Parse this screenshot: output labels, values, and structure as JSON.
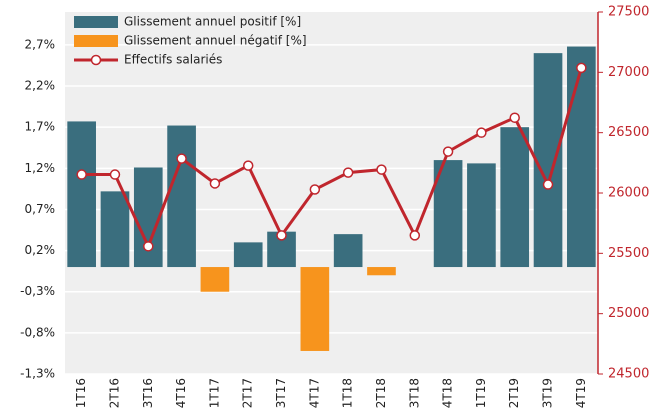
{
  "chart_data": {
    "type": "bar-line",
    "categories": [
      "1T16",
      "2T16",
      "3T16",
      "4T16",
      "1T17",
      "2T17",
      "3T17",
      "4T17",
      "1T18",
      "2T18",
      "3T18",
      "4T18",
      "1T19",
      "2T19",
      "3T19",
      "4T19"
    ],
    "series": [
      {
        "name": "Glissement annuel positif [%]",
        "color": "#3a6e7e",
        "type": "bar",
        "values": [
          1.77,
          0.92,
          1.21,
          1.72,
          null,
          0.3,
          0.43,
          null,
          0.4,
          null,
          null,
          1.3,
          1.26,
          1.7,
          2.6,
          2.68
        ]
      },
      {
        "name": "Glissement annuel négatif [%]",
        "color": "#f7941d",
        "type": "bar",
        "values": [
          null,
          null,
          null,
          null,
          -0.3,
          null,
          null,
          -1.02,
          null,
          -0.1,
          null,
          null,
          null,
          null,
          null,
          null
        ]
      },
      {
        "name": "Effectifs salariés",
        "color": "#c0262d",
        "type": "line",
        "axis": "y2",
        "values": [
          26153,
          26153,
          25558,
          26285,
          26079,
          26227,
          25649,
          26029,
          26169,
          26194,
          25649,
          26343,
          26500,
          26624,
          26070,
          27037
        ]
      }
    ],
    "ylim": [
      -1.3,
      3.1
    ],
    "yticks": [
      {
        "value": -1.3,
        "label": "-1,3%"
      },
      {
        "value": -0.8,
        "label": "-0,8%"
      },
      {
        "value": -0.3,
        "label": "-0,3%"
      },
      {
        "value": 0.2,
        "label": "0,2%"
      },
      {
        "value": 0.7,
        "label": "0,7%"
      },
      {
        "value": 1.2,
        "label": "1,2%"
      },
      {
        "value": 1.7,
        "label": "1,7%"
      },
      {
        "value": 2.2,
        "label": "2,2%"
      },
      {
        "value": 2.7,
        "label": "2,7%"
      }
    ],
    "y2lim": [
      24500,
      27500
    ],
    "y2ticks": [
      24500,
      25000,
      25500,
      26000,
      26500,
      27000,
      27500
    ],
    "grid": true,
    "legend": "top-left"
  }
}
